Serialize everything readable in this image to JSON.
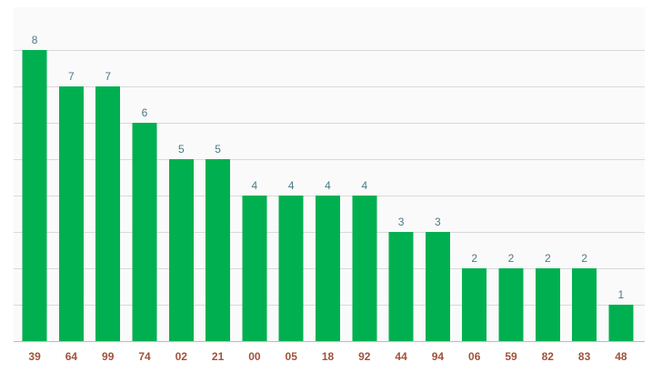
{
  "chart_data": {
    "type": "bar",
    "categories": [
      "39",
      "64",
      "99",
      "74",
      "02",
      "21",
      "00",
      "05",
      "18",
      "92",
      "44",
      "94",
      "06",
      "59",
      "82",
      "83",
      "48"
    ],
    "values": [
      8,
      7,
      7,
      6,
      5,
      5,
      4,
      4,
      4,
      4,
      3,
      3,
      2,
      2,
      2,
      2,
      1
    ],
    "title": "",
    "xlabel": "",
    "ylabel": "",
    "ylim": [
      0,
      8.5
    ],
    "grid": true,
    "legend": "none",
    "data_labels": true,
    "colors": {
      "bar": "#00b050",
      "value_label": "#4a7a86",
      "tick_label": "#a0523a",
      "grid": "#d9d9d9"
    }
  }
}
